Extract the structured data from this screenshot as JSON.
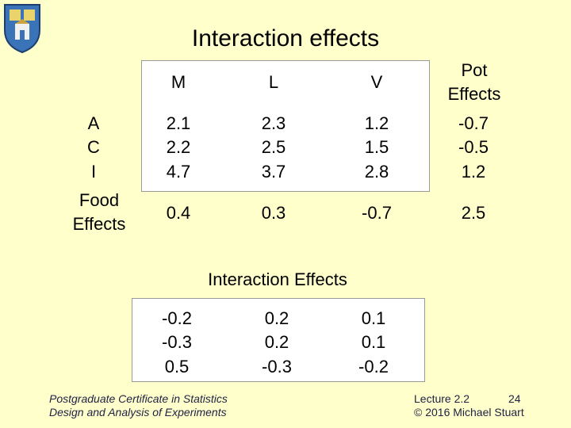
{
  "slide": {
    "title": "Interaction effects",
    "table1": {
      "headers": [
        "M",
        "L",
        "V",
        "Pot\nEffects"
      ],
      "row_labels": [
        "A",
        "C",
        "I"
      ],
      "rows": [
        [
          "2.1",
          "2.3",
          "1.2",
          "-0.7"
        ],
        [
          "2.2",
          "2.5",
          "1.5",
          "-0.5"
        ],
        [
          "4.7",
          "3.7",
          "2.8",
          "1.2"
        ]
      ],
      "food_label": "Food\nEffects",
      "food_effects": [
        "0.4",
        "0.3",
        "-0.7",
        "2.5"
      ]
    },
    "table2": {
      "title": "Interaction Effects",
      "rows": [
        [
          "-0.2",
          "0.2",
          "0.1"
        ],
        [
          "-0.3",
          "0.2",
          "0.1"
        ],
        [
          "0.5",
          "-0.3",
          "-0.2"
        ]
      ]
    },
    "footer": {
      "left_line1": "Postgraduate Certificate in Statistics",
      "left_line2": "Design and Analysis of Experiments",
      "lecture": "Lecture 2.2",
      "page": "24",
      "copyright": "© 2016 Michael Stuart"
    }
  }
}
